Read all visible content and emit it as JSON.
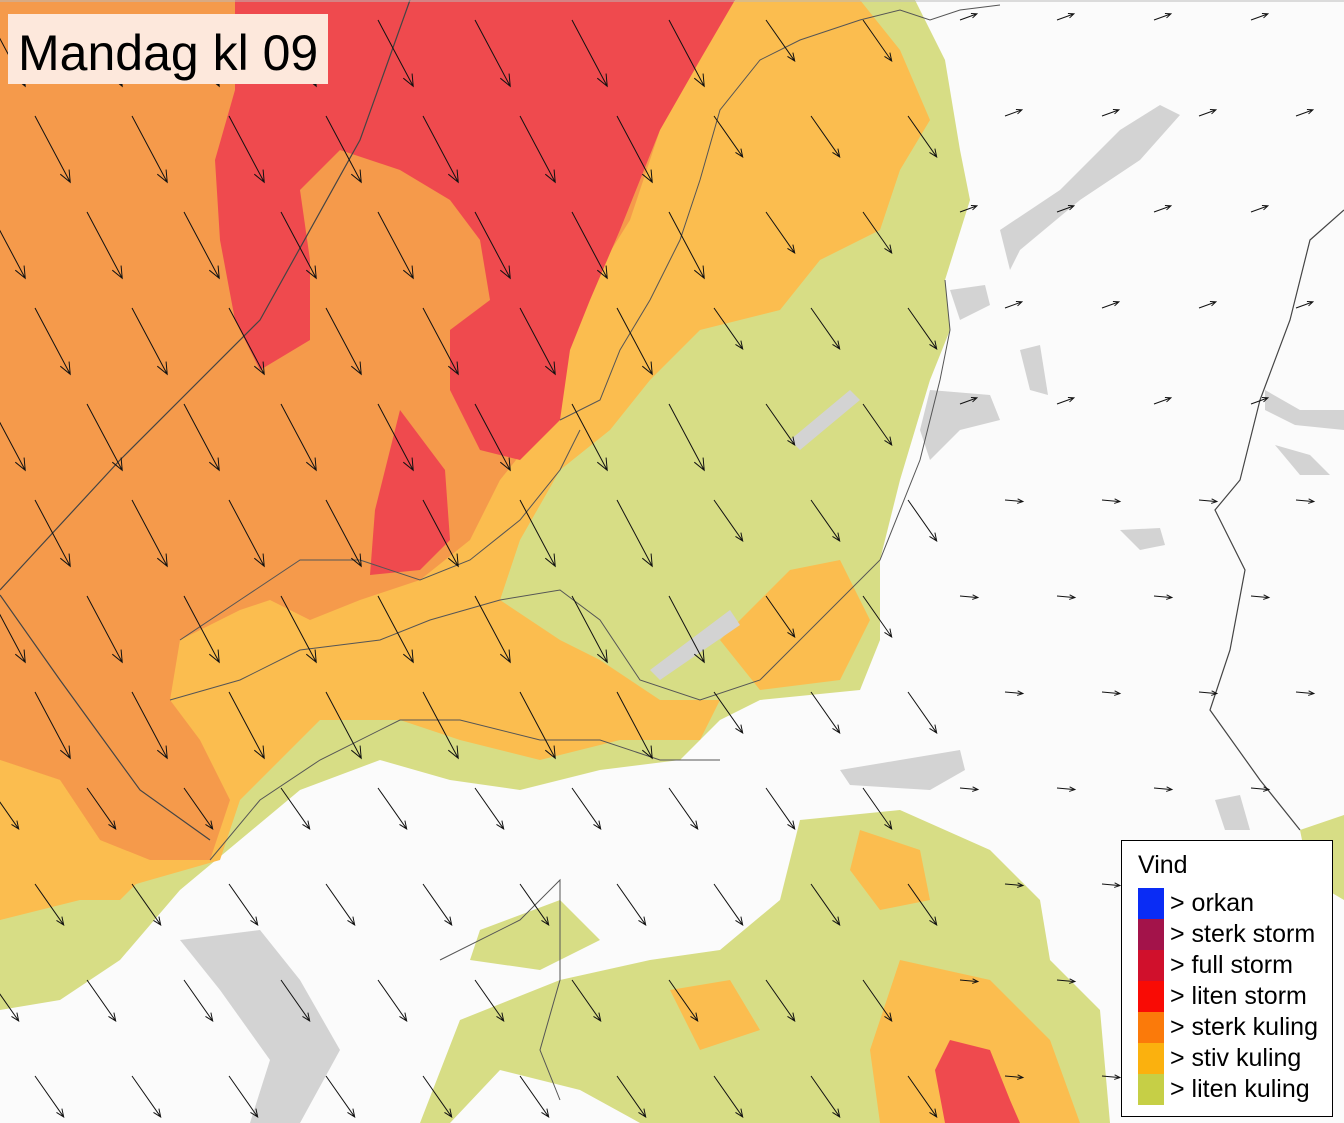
{
  "title": "Mandag kl 09",
  "legend": {
    "title": "Vind",
    "items": [
      {
        "label": "> orkan",
        "color": "#0a2cf5"
      },
      {
        "label": "> sterk storm",
        "color": "#a3134a"
      },
      {
        "label": "> full storm",
        "color": "#d0102c"
      },
      {
        "label": "> liten storm",
        "color": "#f90b05"
      },
      {
        "label": "> sterk kuling",
        "color": "#fb7a0a"
      },
      {
        "label": "> stiv kuling",
        "color": "#fbb10e"
      },
      {
        "label": "> liten kuling",
        "color": "#c6cf46"
      }
    ]
  },
  "map_colors": {
    "sea_sterk_kuling": "#f59a4b",
    "storm": "#ef4a4e",
    "stiv_kuling": "#fbbd4f",
    "liten_kuling": "#d7dd85",
    "land": "#fbfbfb",
    "lakes": "#d3d3d3"
  }
}
